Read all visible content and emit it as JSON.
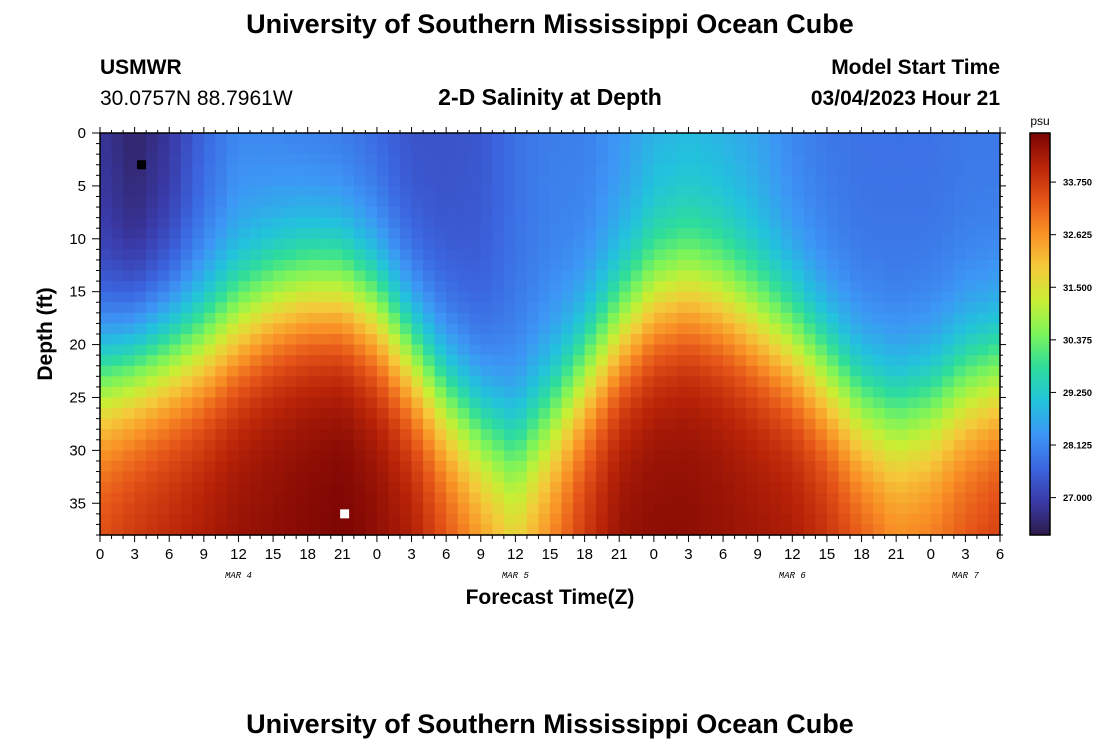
{
  "page": {
    "title_top": "University of Southern Mississippi Ocean Cube",
    "title_bottom": "University of Southern Mississippi Ocean Cube",
    "station": "USMWR",
    "coords": "30.0757N  88.7961W",
    "plot_title": "2-D Salinity at Depth",
    "model_start_label": "Model Start Time",
    "model_start_value": "03/04/2023 Hour 21"
  },
  "chart_data": {
    "type": "heatmap",
    "title": "2-D Salinity at Depth",
    "xlabel": "Forecast Time(Z)",
    "ylabel": "Depth (ft)",
    "x_range_hours": [
      0,
      78
    ],
    "y_range_ft": [
      0,
      38
    ],
    "xtick_labels": [
      "0",
      "3",
      "6",
      "9",
      "12",
      "15",
      "18",
      "21",
      "0",
      "3",
      "6",
      "9",
      "12",
      "15",
      "18",
      "21",
      "0",
      "3",
      "6",
      "9",
      "12",
      "15",
      "18",
      "21",
      "0",
      "3",
      "6"
    ],
    "ytick_labels": [
      "0",
      "5",
      "10",
      "15",
      "20",
      "25",
      "30",
      "35"
    ],
    "date_labels": [
      {
        "text": "MAR 4",
        "hour": 12
      },
      {
        "text": "MAR 5",
        "hour": 36
      },
      {
        "text": "MAR 6",
        "hour": 60
      },
      {
        "text": "MAR 7",
        "hour": 75
      }
    ],
    "colorbar": {
      "unit": "psu",
      "min": 26.2,
      "max": 34.8,
      "ticks": [
        "33.750",
        "32.625",
        "31.500",
        "30.375",
        "29.250",
        "28.125",
        "27.000"
      ]
    },
    "salinity_profiles": [
      {
        "hour": 0,
        "surface": 26.8,
        "bottom": 33.6,
        "halocline_ft": 23
      },
      {
        "hour": 3,
        "surface": 26.4,
        "bottom": 33.9,
        "halocline_ft": 22
      },
      {
        "hour": 6,
        "surface": 26.8,
        "bottom": 34.1,
        "halocline_ft": 21
      },
      {
        "hour": 9,
        "surface": 27.6,
        "bottom": 34.3,
        "halocline_ft": 20
      },
      {
        "hour": 12,
        "surface": 28.1,
        "bottom": 34.5,
        "halocline_ft": 18
      },
      {
        "hour": 15,
        "surface": 28.0,
        "bottom": 34.6,
        "halocline_ft": 16
      },
      {
        "hour": 18,
        "surface": 27.9,
        "bottom": 34.7,
        "halocline_ft": 15
      },
      {
        "hour": 21,
        "surface": 27.8,
        "bottom": 34.8,
        "halocline_ft": 15
      },
      {
        "hour": 24,
        "surface": 27.6,
        "bottom": 34.6,
        "halocline_ft": 17
      },
      {
        "hour": 27,
        "surface": 27.3,
        "bottom": 34.3,
        "halocline_ft": 21
      },
      {
        "hour": 30,
        "surface": 27.3,
        "bottom": 33.6,
        "halocline_ft": 25
      },
      {
        "hour": 33,
        "surface": 27.4,
        "bottom": 32.9,
        "halocline_ft": 28
      },
      {
        "hour": 36,
        "surface": 27.8,
        "bottom": 32.2,
        "halocline_ft": 30
      },
      {
        "hour": 39,
        "surface": 28.0,
        "bottom": 33.0,
        "halocline_ft": 27
      },
      {
        "hour": 42,
        "surface": 28.0,
        "bottom": 33.9,
        "halocline_ft": 23
      },
      {
        "hour": 45,
        "surface": 28.3,
        "bottom": 34.5,
        "halocline_ft": 19
      },
      {
        "hour": 48,
        "surface": 28.7,
        "bottom": 34.6,
        "halocline_ft": 16
      },
      {
        "hour": 51,
        "surface": 28.8,
        "bottom": 34.6,
        "halocline_ft": 15
      },
      {
        "hour": 54,
        "surface": 28.7,
        "bottom": 34.5,
        "halocline_ft": 16
      },
      {
        "hour": 57,
        "surface": 28.5,
        "bottom": 34.4,
        "halocline_ft": 18
      },
      {
        "hour": 60,
        "surface": 28.1,
        "bottom": 34.3,
        "halocline_ft": 20
      },
      {
        "hour": 63,
        "surface": 27.9,
        "bottom": 34.0,
        "halocline_ft": 23
      },
      {
        "hour": 66,
        "surface": 27.8,
        "bottom": 33.5,
        "halocline_ft": 26
      },
      {
        "hour": 69,
        "surface": 27.8,
        "bottom": 33.0,
        "halocline_ft": 27
      },
      {
        "hour": 72,
        "surface": 27.8,
        "bottom": 33.1,
        "halocline_ft": 26
      },
      {
        "hour": 75,
        "surface": 27.9,
        "bottom": 33.5,
        "halocline_ft": 24
      },
      {
        "hour": 78,
        "surface": 27.9,
        "bottom": 33.8,
        "halocline_ft": 23
      }
    ],
    "markers": [
      {
        "name": "min-marker",
        "hour": 3.6,
        "depth_ft": 3,
        "color": "#000000"
      },
      {
        "name": "max-marker",
        "hour": 21.2,
        "depth_ft": 36,
        "color": "#ffffff"
      }
    ],
    "colors": [
      "#2c1b4a",
      "#3a3aa8",
      "#3b66e0",
      "#3d96f5",
      "#22c3dc",
      "#2edd9c",
      "#7cf45a",
      "#c8ef34",
      "#f5c93a",
      "#f99226",
      "#e55418",
      "#b92408",
      "#7a0403"
    ]
  }
}
